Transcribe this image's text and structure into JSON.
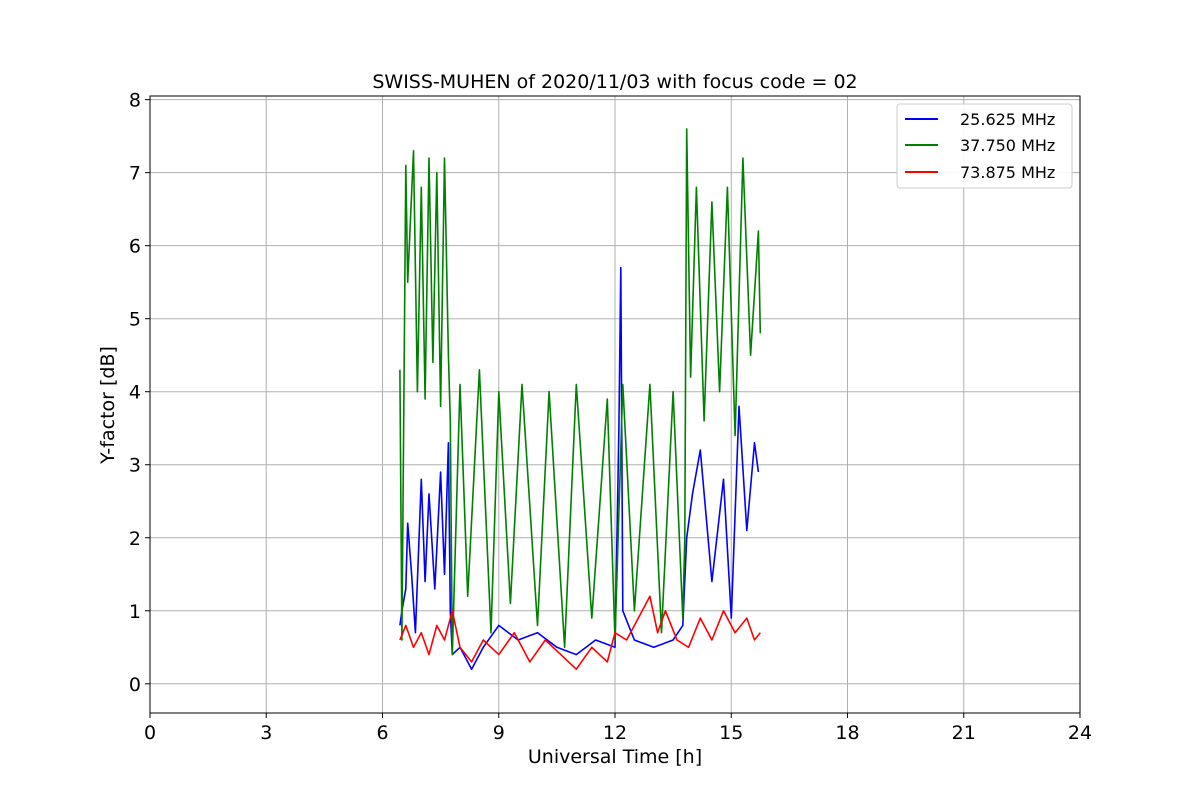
{
  "chart_data": {
    "type": "line",
    "title": "SWISS-MUHEN of 2020/11/03 with focus code = 02",
    "xlabel": "Universal Time [h]",
    "ylabel": "Y-factor [dB]",
    "xlim": [
      0,
      24
    ],
    "ylim": [
      -0.4,
      8.05
    ],
    "xticks": [
      0,
      3,
      6,
      9,
      12,
      15,
      18,
      21,
      24
    ],
    "xtick_labels": [
      "0",
      "3",
      "6",
      "9",
      "12",
      "15",
      "18",
      "21",
      "24"
    ],
    "yticks": [
      0,
      1,
      2,
      3,
      4,
      5,
      6,
      7,
      8
    ],
    "ytick_labels": [
      "0",
      "1",
      "2",
      "3",
      "4",
      "5",
      "6",
      "7",
      "8"
    ],
    "grid": true,
    "legend_position": "top-right",
    "series": [
      {
        "name": "25.625 MHz",
        "color": "#0000ff",
        "x": [
          6.45,
          6.5,
          6.6,
          6.65,
          6.75,
          6.85,
          7.0,
          7.1,
          7.2,
          7.35,
          7.5,
          7.6,
          7.7,
          7.75,
          7.8,
          8.0,
          8.3,
          8.6,
          9.0,
          9.5,
          10.0,
          10.5,
          11.0,
          11.5,
          12.0,
          12.1,
          12.15,
          12.2,
          12.5,
          13.0,
          13.5,
          13.75,
          13.85,
          14.0,
          14.2,
          14.5,
          14.8,
          15.0,
          15.2,
          15.4,
          15.6,
          15.7
        ],
        "y": [
          0.8,
          1.0,
          1.3,
          2.2,
          1.5,
          0.7,
          2.8,
          1.4,
          2.6,
          1.3,
          2.9,
          1.5,
          3.3,
          1.0,
          0.4,
          0.5,
          0.2,
          0.5,
          0.8,
          0.6,
          0.7,
          0.5,
          0.4,
          0.6,
          0.5,
          3.5,
          5.7,
          1.0,
          0.6,
          0.5,
          0.6,
          0.8,
          2.0,
          2.6,
          3.2,
          1.4,
          2.8,
          0.9,
          3.8,
          2.1,
          3.3,
          2.9
        ]
      },
      {
        "name": "37.750 MHz",
        "color": "#008000",
        "x": [
          6.45,
          6.5,
          6.6,
          6.65,
          6.8,
          6.9,
          7.0,
          7.1,
          7.2,
          7.3,
          7.4,
          7.5,
          7.6,
          7.7,
          7.75,
          7.8,
          8.0,
          8.2,
          8.5,
          8.8,
          9.0,
          9.3,
          9.6,
          10.0,
          10.3,
          10.7,
          11.0,
          11.4,
          11.8,
          12.0,
          12.2,
          12.5,
          12.9,
          13.2,
          13.5,
          13.75,
          13.8,
          13.85,
          13.95,
          14.1,
          14.3,
          14.5,
          14.7,
          14.9,
          15.1,
          15.3,
          15.5,
          15.7,
          15.75
        ],
        "y": [
          4.3,
          0.6,
          7.1,
          5.5,
          7.3,
          4.0,
          6.8,
          3.9,
          7.2,
          4.4,
          7.0,
          3.8,
          7.2,
          4.5,
          3.6,
          0.4,
          4.1,
          1.2,
          4.3,
          0.7,
          4.0,
          1.1,
          4.1,
          0.8,
          4.0,
          0.5,
          4.1,
          0.9,
          3.9,
          0.6,
          4.1,
          1.0,
          4.1,
          0.7,
          4.0,
          0.9,
          2.0,
          7.6,
          4.2,
          6.8,
          3.6,
          6.6,
          4.0,
          6.8,
          3.4,
          7.2,
          4.5,
          6.2,
          4.8
        ]
      },
      {
        "name": "73.875 MHz",
        "color": "#ff0000",
        "x": [
          6.45,
          6.6,
          6.8,
          7.0,
          7.2,
          7.4,
          7.6,
          7.8,
          8.0,
          8.3,
          8.6,
          9.0,
          9.4,
          9.8,
          10.2,
          10.6,
          11.0,
          11.4,
          11.8,
          12.0,
          12.3,
          12.6,
          12.9,
          13.1,
          13.3,
          13.6,
          13.9,
          14.2,
          14.5,
          14.8,
          15.1,
          15.4,
          15.6,
          15.75
        ],
        "y": [
          0.6,
          0.8,
          0.5,
          0.7,
          0.4,
          0.8,
          0.6,
          1.0,
          0.5,
          0.3,
          0.6,
          0.4,
          0.7,
          0.3,
          0.6,
          0.4,
          0.2,
          0.5,
          0.3,
          0.7,
          0.6,
          0.9,
          1.2,
          0.7,
          1.0,
          0.6,
          0.5,
          0.9,
          0.6,
          1.0,
          0.7,
          0.9,
          0.6,
          0.7
        ]
      }
    ]
  }
}
